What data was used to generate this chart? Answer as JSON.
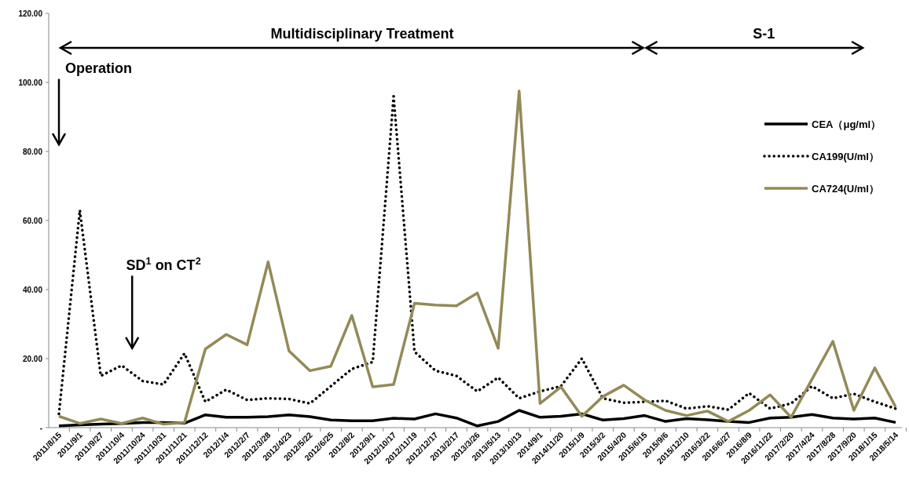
{
  "chart_data": {
    "type": "line",
    "categories": [
      "2011/8/15",
      "2011/9/1",
      "2011/9/27",
      "2011/10/4",
      "2011/10/24",
      "2011/10/31",
      "2011/11/21",
      "2011/12/12",
      "2012/1/4",
      "2012/2/7",
      "2012/3/28",
      "2012/4/23",
      "2012/5/22",
      "2012/6/25",
      "2012/8/2",
      "2012/9/1",
      "2012/10/17",
      "2012/11/19",
      "2012/12/17",
      "2013/2/17",
      "2013/3/26",
      "2013/5/13",
      "2013/10/13",
      "2014/9/1",
      "2014/11/20",
      "2015/1/9",
      "2015/3/2",
      "2015/4/20",
      "2015/6/15",
      "2015/9/6",
      "2015/12/10",
      "2016/3/22",
      "2016/6/27",
      "2016/8/9",
      "2016/11/22",
      "2017/2/20",
      "2017/4/24",
      "2017/8/28",
      "2017/9/20",
      "2018/1/15",
      "2018/5/14"
    ],
    "series": [
      {
        "name": "CEA（μg/ml）",
        "color": "#000000",
        "line_style": "solid",
        "values": [
          0.5,
          0.8,
          1,
          1.2,
          1.5,
          1.5,
          1.3,
          3.7,
          3,
          3,
          3.2,
          3.7,
          3.2,
          2.2,
          2,
          2,
          2.7,
          2.5,
          4,
          2.8,
          0.5,
          1.8,
          5,
          3,
          3.3,
          4,
          2.2,
          2.6,
          3.5,
          1.8,
          2.6,
          2.3,
          1.8,
          1.5,
          2.8,
          3,
          3.8,
          2.8,
          2.5,
          2.8,
          1.5
        ]
      },
      {
        "name": "CA199(U/ml）",
        "color": "#000000",
        "line_style": "dotted",
        "values": [
          4,
          63,
          15,
          18,
          13.5,
          12.5,
          21.5,
          7.5,
          11,
          8,
          8.5,
          8.3,
          7,
          12,
          17,
          19,
          96,
          22,
          16.5,
          15,
          10.5,
          14.5,
          8.5,
          10.5,
          12,
          20,
          8.5,
          7.2,
          7.5,
          7.8,
          5.5,
          6.2,
          5.2,
          10,
          5.5,
          7,
          12,
          8.5,
          9.8,
          7.5,
          5.5
        ]
      },
      {
        "name": "CA724(U/ml）",
        "color": "#938a58",
        "line_style": "solid",
        "values": [
          3.3,
          1.2,
          2.5,
          1.2,
          2.8,
          1,
          1.5,
          22.8,
          27,
          24,
          48,
          22.2,
          16.5,
          17.8,
          32.5,
          11.8,
          12.5,
          36,
          35.5,
          35.3,
          39,
          23,
          97.5,
          7,
          11.8,
          3.3,
          9,
          12.3,
          8,
          5,
          3.5,
          4.8,
          1.8,
          5,
          9.5,
          3,
          14,
          25,
          5,
          17.3,
          6
        ]
      }
    ],
    "ylim": [
      0,
      120
    ],
    "yticks": [
      {
        "value": 0,
        "label": "-"
      },
      {
        "value": 20,
        "label": "20.00"
      },
      {
        "value": 40,
        "label": "40.00"
      },
      {
        "value": 60,
        "label": "60.00"
      },
      {
        "value": 80,
        "label": "80.00"
      },
      {
        "value": 100,
        "label": "100.00"
      },
      {
        "value": 120,
        "label": "120.00"
      }
    ],
    "annotations": [
      "Multidisciplinary Treatment",
      "S-1",
      "Operation",
      "SD$^{1}$ on CT$^{2}$"
    ],
    "legend": "right",
    "grid": false,
    "marker": "none"
  }
}
